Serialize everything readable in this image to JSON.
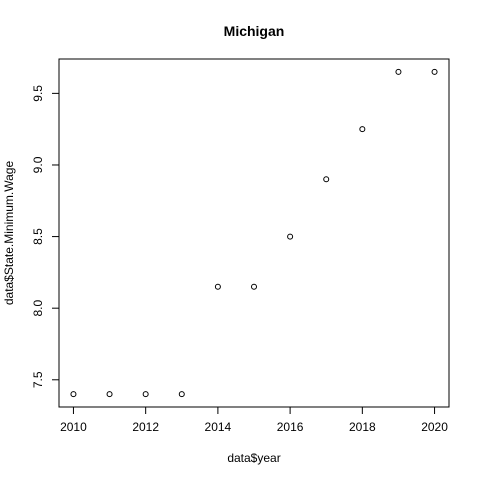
{
  "chart_data": {
    "type": "scatter",
    "title": "Michigan",
    "xlabel": "data$year",
    "ylabel": "data$State.Minimum.Wage",
    "x": [
      2010,
      2011,
      2012,
      2013,
      2014,
      2015,
      2016,
      2017,
      2018,
      2019,
      2020
    ],
    "y": [
      7.4,
      7.4,
      7.4,
      7.4,
      8.15,
      8.15,
      8.5,
      8.9,
      9.25,
      9.65,
      9.65
    ],
    "xlim": [
      2009.6,
      2020.4
    ],
    "ylim": [
      7.31,
      9.74
    ],
    "xticks": [
      "2010",
      "2012",
      "2014",
      "2016",
      "2018",
      "2020"
    ],
    "yticks": [
      "7.5",
      "8.0",
      "8.5",
      "9.0",
      "9.5"
    ],
    "grid": false,
    "marker": "open-circle"
  }
}
